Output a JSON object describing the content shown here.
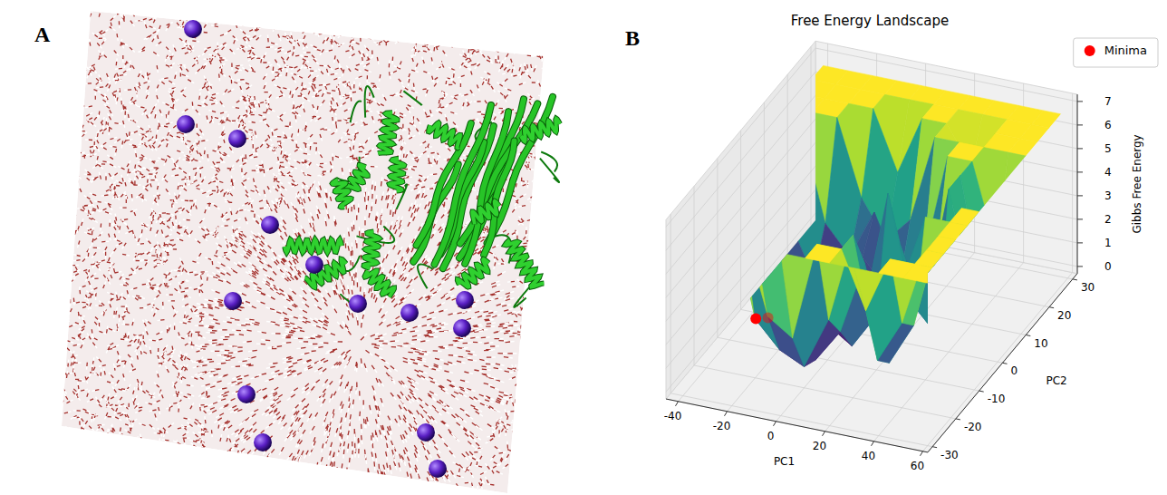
{
  "panel_labels": [
    "A",
    "B"
  ],
  "chart_data": {
    "type": "surface",
    "title": "Free Energy Landscape",
    "x_label": "PC1",
    "y_label": "PC2",
    "z_label": "Gibbs Free Energy",
    "x": [
      -40,
      -30,
      -20,
      -10,
      0,
      10,
      20,
      30,
      40,
      50,
      60
    ],
    "y": [
      -30,
      -25,
      -20,
      -15,
      -10,
      -5,
      0,
      5,
      10,
      15,
      20,
      25,
      30
    ],
    "z": [
      [
        6.6,
        6.6,
        6.6,
        6.6,
        6.6,
        6.6,
        6.6,
        6.6,
        6.6,
        6.6,
        6.6
      ],
      [
        6.6,
        6.6,
        6.6,
        3.1,
        2.4,
        6.6,
        6.6,
        4.2,
        6.6,
        6.6,
        6.6
      ],
      [
        6.6,
        6.6,
        2.2,
        1.1,
        0.6,
        2.8,
        6.6,
        1.5,
        3.3,
        6.6,
        6.6
      ],
      [
        6.6,
        6.6,
        3.0,
        0.9,
        0.3,
        1.7,
        4.8,
        0.8,
        2.6,
        6.6,
        6.6
      ],
      [
        6.6,
        5.4,
        1.6,
        2.2,
        1.2,
        0.5,
        2.0,
        3.5,
        6.6,
        6.6,
        6.6
      ],
      [
        6.6,
        0.4,
        1.3,
        2.9,
        0.8,
        1.4,
        6.6,
        2.1,
        1.0,
        6.6,
        6.6
      ],
      [
        6.6,
        0.9,
        2.5,
        1.8,
        0.5,
        2.7,
        3.9,
        1.2,
        6.6,
        2.4,
        6.6
      ],
      [
        6.6,
        3.2,
        1.0,
        0.7,
        2.3,
        1.1,
        0.9,
        2.8,
        6.6,
        1.3,
        6.6
      ],
      [
        6.6,
        6.6,
        2.7,
        1.5,
        3.6,
        0.6,
        1.9,
        6.6,
        6.6,
        3.0,
        6.6
      ],
      [
        6.6,
        6.6,
        6.6,
        3.4,
        1.8,
        2.9,
        6.6,
        6.6,
        6.6,
        6.6,
        6.6
      ],
      [
        6.6,
        6.6,
        6.6,
        6.6,
        4.1,
        6.6,
        6.6,
        5.0,
        6.6,
        6.6,
        6.6
      ],
      [
        6.6,
        6.6,
        6.6,
        6.6,
        6.6,
        6.6,
        6.6,
        6.6,
        6.6,
        6.6,
        6.6
      ],
      [
        6.6,
        6.6,
        6.6,
        6.6,
        6.6,
        6.6,
        6.6,
        6.6,
        6.6,
        6.6,
        6.6
      ]
    ],
    "xlim": [
      -45,
      62
    ],
    "ylim": [
      -32,
      32
    ],
    "zlim": [
      -0.3,
      7.3
    ],
    "xticks": [
      -40,
      -20,
      0,
      20,
      40,
      60
    ],
    "yticks": [
      -30,
      -20,
      -10,
      0,
      10,
      20,
      30
    ],
    "zticks": [
      0,
      1,
      2,
      3,
      4,
      5,
      6,
      7
    ],
    "series": [
      {
        "name": "Minima",
        "color": "red",
        "marker": "o",
        "type": "scatter",
        "x": [
          -35,
          -31
        ],
        "y": [
          -4,
          -3
        ],
        "values": [
          0,
          0
        ]
      }
    ],
    "legend": "upper right",
    "grid": true
  }
}
